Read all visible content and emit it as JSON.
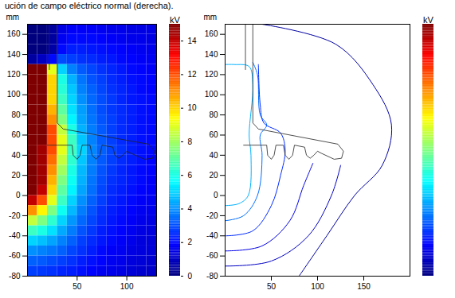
{
  "caption": "ución de campo eléctrico normal (derecha).",
  "chart_data": [
    {
      "type": "heatmap",
      "y_label": "mm",
      "xlim": [
        0,
        130
      ],
      "xticks": [
        50,
        100
      ],
      "ylim": [
        -80,
        170
      ],
      "yticks": [
        -80,
        -60,
        -40,
        -20,
        0,
        20,
        40,
        60,
        80,
        100,
        120,
        140,
        160
      ],
      "x": [
        5,
        15,
        25,
        35,
        45,
        55,
        65,
        75,
        85,
        95,
        105,
        115,
        125
      ],
      "y": [
        165,
        155,
        145,
        135,
        125,
        115,
        105,
        95,
        85,
        75,
        65,
        55,
        45,
        35,
        25,
        15,
        5,
        -5,
        -15,
        -25,
        -35,
        -45,
        -55,
        -65,
        -75
      ],
      "cells": [
        [
          0,
          0,
          0.5,
          1.5,
          1.8,
          1.8,
          1.8,
          1.7,
          1.6,
          1.6,
          1.5,
          1.5,
          1.5
        ],
        [
          0,
          0,
          0.5,
          1.7,
          2,
          2,
          2,
          1.9,
          1.8,
          1.7,
          1.6,
          1.6,
          1.5
        ],
        [
          0,
          0,
          0.6,
          2,
          2.3,
          2.3,
          2.2,
          2.1,
          2,
          1.9,
          1.8,
          1.7,
          1.6
        ],
        [
          0.5,
          1,
          2,
          3,
          2.8,
          2.6,
          2.5,
          2.3,
          2.2,
          2,
          1.9,
          1.8,
          1.7
        ],
        [
          15,
          15,
          9,
          5,
          3.8,
          3.2,
          2.9,
          2.6,
          2.4,
          2.2,
          2,
          1.9,
          1.8
        ],
        [
          15,
          15,
          10,
          6,
          4.5,
          3.6,
          3.1,
          2.8,
          2.5,
          2.3,
          2.1,
          2,
          1.9
        ],
        [
          15,
          15,
          10,
          6.2,
          4.8,
          3.8,
          3.3,
          2.9,
          2.6,
          2.4,
          2.2,
          2,
          1.9
        ],
        [
          15,
          15,
          10,
          6.5,
          5,
          4,
          3.4,
          3,
          2.7,
          2.4,
          2.2,
          2.1,
          2
        ],
        [
          15,
          15,
          10.5,
          7,
          5.2,
          4.2,
          3.5,
          3,
          2.7,
          2.5,
          2.3,
          2.1,
          2
        ],
        [
          15,
          15,
          11,
          7.5,
          5.5,
          4.3,
          3.6,
          3.1,
          2.8,
          2.5,
          2.3,
          2.1,
          2
        ],
        [
          15,
          15,
          12,
          8.5,
          6,
          4.5,
          3.7,
          3.2,
          2.8,
          2.5,
          2.3,
          2.1,
          2
        ],
        [
          15,
          15,
          12,
          9,
          6.5,
          4.8,
          3.8,
          3.2,
          2.8,
          2.5,
          2.3,
          2.1,
          2
        ],
        [
          15,
          14.5,
          12,
          9,
          6.5,
          5,
          3.9,
          3.3,
          2.9,
          2.6,
          2.3,
          2.1,
          2
        ],
        [
          15,
          14.5,
          11.5,
          8.5,
          6.3,
          4.8,
          3.8,
          3.2,
          2.8,
          2.5,
          2.3,
          2.1,
          1.9
        ],
        [
          15,
          14.5,
          11,
          8,
          6,
          4.6,
          3.7,
          3.1,
          2.7,
          2.4,
          2.2,
          2,
          1.9
        ],
        [
          15,
          14.5,
          10.5,
          7.5,
          5.8,
          4.5,
          3.6,
          3,
          2.6,
          2.4,
          2.2,
          2,
          1.8
        ],
        [
          15,
          14,
          10,
          7,
          5.5,
          4.3,
          3.5,
          2.9,
          2.5,
          2.3,
          2.1,
          1.9,
          1.8
        ],
        [
          14,
          12,
          9,
          6.5,
          5,
          4,
          3.3,
          2.8,
          2.4,
          2.2,
          2,
          1.8,
          1.7
        ],
        [
          11,
          9.5,
          7.5,
          5.8,
          4.6,
          3.7,
          3.1,
          2.6,
          2.3,
          2.1,
          1.9,
          1.7,
          1.6
        ],
        [
          8.5,
          7.5,
          6.3,
          5,
          4.1,
          3.4,
          2.9,
          2.5,
          2.2,
          2,
          1.8,
          1.6,
          1.5
        ],
        [
          6.5,
          6,
          5.2,
          4.4,
          3.7,
          3.1,
          2.7,
          2.3,
          2.1,
          1.9,
          1.7,
          1.5,
          1.4
        ],
        [
          5,
          4.7,
          4.3,
          3.8,
          3.3,
          2.8,
          2.5,
          2.2,
          2,
          1.8,
          1.6,
          1.4,
          1.3
        ],
        [
          4,
          3.8,
          3.6,
          3.3,
          2.9,
          2.6,
          2.3,
          2,
          1.8,
          1.7,
          1.5,
          1.4,
          1.3
        ],
        [
          3.3,
          3.2,
          3,
          2.8,
          2.6,
          2.3,
          2.1,
          1.9,
          1.7,
          1.6,
          1.4,
          1.3,
          1.2
        ],
        [
          2.8,
          2.7,
          2.6,
          2.4,
          2.3,
          2.1,
          1.9,
          1.7,
          1.6,
          1.5,
          1.3,
          1.2,
          1.1
        ]
      ],
      "outline": [
        [
          [
            30,
            170
          ],
          [
            30,
            72
          ],
          [
            36,
            66
          ],
          [
            122,
            51
          ],
          [
            128,
            44
          ],
          [
            126,
            37
          ],
          [
            118,
            36
          ],
          [
            104,
            42
          ],
          [
            100,
            44
          ],
          [
            96,
            40
          ],
          [
            92,
            37
          ],
          [
            88,
            40
          ],
          [
            86,
            48
          ],
          [
            75,
            50
          ],
          [
            73,
            40
          ],
          [
            69,
            36
          ],
          [
            65,
            40
          ],
          [
            63,
            50
          ],
          [
            55,
            50
          ],
          [
            53,
            40
          ],
          [
            50,
            36
          ],
          [
            46,
            40
          ],
          [
            45,
            50
          ],
          [
            20,
            50
          ]
        ],
        [
          [
            22,
            170
          ],
          [
            22,
            125
          ]
        ]
      ],
      "colorbar": {
        "label": "kV",
        "range": [
          0,
          15
        ],
        "ticks": [
          0,
          2,
          4,
          6,
          8,
          10,
          12,
          14
        ]
      }
    },
    {
      "type": "contour",
      "y_label": "mm",
      "xlim": [
        0,
        200
      ],
      "xticks": [
        50,
        100,
        150
      ],
      "ylim": [
        -80,
        170
      ],
      "yticks": [
        -80,
        -60,
        -40,
        -20,
        0,
        20,
        40,
        60,
        80,
        100,
        120,
        140,
        160
      ],
      "lines": [
        {
          "value": 4.5,
          "points": [
            [
              0,
              -10
            ],
            [
              15,
              -8
            ],
            [
              25,
              0
            ],
            [
              28,
              40
            ],
            [
              26,
              60
            ],
            [
              30,
              110
            ],
            [
              26,
              128
            ],
            [
              10,
              130
            ],
            [
              0,
              130
            ]
          ]
        },
        {
          "value": 3.5,
          "points": [
            [
              0,
              -25
            ],
            [
              20,
              -20
            ],
            [
              35,
              0
            ],
            [
              40,
              40
            ],
            [
              38,
              60
            ],
            [
              45,
              70
            ],
            [
              38,
              80
            ],
            [
              35,
              120
            ],
            [
              30,
              132
            ]
          ]
        },
        {
          "value": 2.5,
          "points": [
            [
              0,
              -40
            ],
            [
              30,
              -35
            ],
            [
              50,
              -10
            ],
            [
              60,
              20
            ],
            [
              65,
              45
            ],
            [
              60,
              62
            ],
            [
              42,
              72
            ],
            [
              38,
              90
            ],
            [
              36,
              130
            ]
          ]
        },
        {
          "value": 1.5,
          "points": [
            [
              0,
              -55
            ],
            [
              40,
              -50
            ],
            [
              70,
              -25
            ],
            [
              85,
              10
            ],
            [
              95,
              32
            ]
          ]
        },
        {
          "value": 1,
          "points": [
            [
              0,
              -70
            ],
            [
              50,
              -65
            ],
            [
              90,
              -40
            ],
            [
              115,
              0
            ],
            [
              125,
              30
            ]
          ]
        },
        {
          "value": 0.5,
          "points": [
            [
              40,
              170
            ],
            [
              120,
              150
            ],
            [
              160,
              110
            ],
            [
              180,
              70
            ],
            [
              170,
              30
            ],
            [
              140,
              0
            ],
            [
              110,
              -40
            ],
            [
              80,
              -80
            ]
          ]
        }
      ],
      "outline": [
        [
          [
            30,
            170
          ],
          [
            30,
            72
          ],
          [
            36,
            66
          ],
          [
            122,
            51
          ],
          [
            128,
            44
          ],
          [
            126,
            37
          ],
          [
            118,
            36
          ],
          [
            104,
            42
          ],
          [
            100,
            44
          ],
          [
            96,
            40
          ],
          [
            92,
            37
          ],
          [
            88,
            40
          ],
          [
            86,
            48
          ],
          [
            75,
            50
          ],
          [
            73,
            40
          ],
          [
            69,
            36
          ],
          [
            65,
            40
          ],
          [
            63,
            50
          ],
          [
            55,
            50
          ],
          [
            53,
            40
          ],
          [
            50,
            36
          ],
          [
            46,
            40
          ],
          [
            45,
            50
          ],
          [
            20,
            50
          ]
        ],
        [
          [
            22,
            170
          ],
          [
            22,
            125
          ]
        ]
      ],
      "colorbar": {
        "label": "kV",
        "range": [
          0,
          15
        ],
        "tick_labels": false
      }
    }
  ]
}
